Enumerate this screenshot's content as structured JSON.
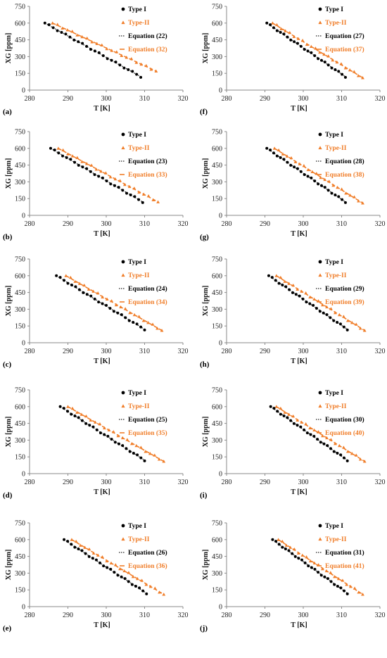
{
  "colors": {
    "type1": "#000000",
    "type2": "#F07E2A",
    "eq1": "#222222",
    "eq2": "#F07E2A"
  },
  "axes": {
    "xlabel": "T [K]",
    "ylabel": "XG [ppm]",
    "xticks": [
      "280",
      "290",
      "300",
      "310",
      "320"
    ],
    "yticks": [
      "0",
      "150",
      "300",
      "450",
      "600",
      "750"
    ],
    "xlim": [
      280,
      320
    ],
    "ylim": [
      0,
      750
    ]
  },
  "chart_data": [
    {
      "type": "scatter",
      "panel": "(a)",
      "xlabel": "T [K]",
      "ylabel": "XG [ppm]",
      "xlim": [
        280,
        320
      ],
      "ylim": [
        0,
        750
      ],
      "grid": false,
      "legend": "top-right",
      "legend_labels": [
        "Type I",
        "Type-II",
        "Equation (22)",
        "Equation (32)"
      ],
      "series": [
        {
          "name": "Type I",
          "x_range": [
            284,
            309
          ],
          "y_range": [
            600,
            120
          ]
        },
        {
          "name": "Type-II",
          "x_range": [
            286,
            313
          ],
          "y_range": [
            600,
            170
          ]
        },
        {
          "name": "Equation (22)",
          "x_range": [
            284,
            309
          ],
          "y_range": [
            600,
            120
          ]
        },
        {
          "name": "Equation (32)",
          "x_range": [
            286,
            313
          ],
          "y_range": [
            600,
            170
          ]
        }
      ]
    },
    {
      "type": "scatter",
      "panel": "(b)",
      "xlabel": "T [K]",
      "ylabel": "XG [ppm]",
      "xlim": [
        280,
        320
      ],
      "ylim": [
        0,
        750
      ],
      "grid": false,
      "legend": "top-right",
      "legend_labels": [
        "Type I",
        "Type-II",
        "Equation (23)",
        "Equation (33)"
      ],
      "series": [
        {
          "name": "Type I",
          "x_range": [
            285.5,
            309.5
          ],
          "y_range": [
            600,
            120
          ]
        },
        {
          "name": "Type-II",
          "x_range": [
            287.5,
            313.5
          ],
          "y_range": [
            600,
            120
          ]
        },
        {
          "name": "Equation (23)",
          "x_range": [
            285.5,
            309.5
          ],
          "y_range": [
            600,
            120
          ]
        },
        {
          "name": "Equation (33)",
          "x_range": [
            287.5,
            313.5
          ],
          "y_range": [
            600,
            120
          ]
        }
      ]
    },
    {
      "type": "scatter",
      "panel": "(c)",
      "xlabel": "T [K]",
      "ylabel": "XG [ppm]",
      "xlim": [
        280,
        320
      ],
      "ylim": [
        0,
        750
      ],
      "grid": false,
      "legend": "top-right",
      "legend_labels": [
        "Type I",
        "Type-II",
        "Equation (24)",
        "Equation (34)"
      ],
      "series": [
        {
          "name": "Type I",
          "x_range": [
            287,
            310
          ],
          "y_range": [
            600,
            120
          ]
        },
        {
          "name": "Type-II",
          "x_range": [
            289.5,
            314.5
          ],
          "y_range": [
            600,
            110
          ]
        },
        {
          "name": "Equation (24)",
          "x_range": [
            287,
            310
          ],
          "y_range": [
            600,
            120
          ]
        },
        {
          "name": "Equation (34)",
          "x_range": [
            289.5,
            314.5
          ],
          "y_range": [
            600,
            110
          ]
        }
      ]
    },
    {
      "type": "scatter",
      "panel": "(d)",
      "xlabel": "T [K]",
      "ylabel": "XG [ppm]",
      "xlim": [
        280,
        320
      ],
      "ylim": [
        0,
        750
      ],
      "grid": false,
      "legend": "top-right",
      "legend_labels": [
        "Type I",
        "Type-II",
        "Equation (25)",
        "Equation (35)"
      ],
      "series": [
        {
          "name": "Type I",
          "x_range": [
            288,
            310
          ],
          "y_range": [
            600,
            120
          ]
        },
        {
          "name": "Type-II",
          "x_range": [
            290,
            315
          ],
          "y_range": [
            600,
            110
          ]
        },
        {
          "name": "Equation (25)",
          "x_range": [
            288,
            310
          ],
          "y_range": [
            600,
            120
          ]
        },
        {
          "name": "Equation (35)",
          "x_range": [
            290,
            315
          ],
          "y_range": [
            600,
            110
          ]
        }
      ]
    },
    {
      "type": "scatter",
      "panel": "(e)",
      "xlabel": "T [K]",
      "ylabel": "XG [ppm]",
      "xlim": [
        280,
        320
      ],
      "ylim": [
        0,
        750
      ],
      "grid": false,
      "legend": "top-right",
      "legend_labels": [
        "Type I",
        "Type-II",
        "Equation (26)",
        "Equation (36)"
      ],
      "series": [
        {
          "name": "Type I",
          "x_range": [
            289,
            310.5
          ],
          "y_range": [
            600,
            120
          ]
        },
        {
          "name": "Type-II",
          "x_range": [
            291,
            315
          ],
          "y_range": [
            600,
            110
          ]
        },
        {
          "name": "Equation (26)",
          "x_range": [
            289,
            310.5
          ],
          "y_range": [
            600,
            120
          ]
        },
        {
          "name": "Equation (36)",
          "x_range": [
            291,
            315
          ],
          "y_range": [
            600,
            110
          ]
        }
      ]
    },
    {
      "type": "scatter",
      "panel": "(f)",
      "xlabel": "T [K]",
      "ylabel": "XG [ppm]",
      "xlim": [
        280,
        320
      ],
      "ylim": [
        0,
        750
      ],
      "grid": false,
      "legend": "top-right",
      "legend_labels": [
        "Type I",
        "Type-II",
        "Equation (27)",
        "Equation (37)"
      ],
      "series": [
        {
          "name": "Type I",
          "x_range": [
            290.5,
            311
          ],
          "y_range": [
            600,
            120
          ]
        },
        {
          "name": "Type-II",
          "x_range": [
            292,
            315.5
          ],
          "y_range": [
            600,
            110
          ]
        },
        {
          "name": "Equation (27)",
          "x_range": [
            290.5,
            311
          ],
          "y_range": [
            600,
            120
          ]
        },
        {
          "name": "Equation (37)",
          "x_range": [
            292,
            315.5
          ],
          "y_range": [
            600,
            110
          ]
        }
      ]
    },
    {
      "type": "scatter",
      "panel": "(g)",
      "xlabel": "T [K]",
      "ylabel": "XG [ppm]",
      "xlim": [
        280,
        320
      ],
      "ylim": [
        0,
        750
      ],
      "grid": false,
      "legend": "top-right",
      "legend_labels": [
        "Type I",
        "Type-II",
        "Equation (28)",
        "Equation (38)"
      ],
      "series": [
        {
          "name": "Type I",
          "x_range": [
            290.5,
            311
          ],
          "y_range": [
            600,
            120
          ]
        },
        {
          "name": "Type-II",
          "x_range": [
            292.5,
            315.5
          ],
          "y_range": [
            600,
            110
          ]
        },
        {
          "name": "Equation (28)",
          "x_range": [
            290.5,
            311
          ],
          "y_range": [
            600,
            120
          ]
        },
        {
          "name": "Equation (38)",
          "x_range": [
            292.5,
            315.5
          ],
          "y_range": [
            600,
            110
          ]
        }
      ]
    },
    {
      "type": "scatter",
      "panel": "(h)",
      "xlabel": "T [K]",
      "ylabel": "XG [ppm]",
      "xlim": [
        280,
        320
      ],
      "ylim": [
        0,
        750
      ],
      "grid": false,
      "legend": "top-right",
      "legend_labels": [
        "Type I",
        "Type-II",
        "Equation (29)",
        "Equation (39)"
      ],
      "series": [
        {
          "name": "Type I",
          "x_range": [
            291,
            311.5
          ],
          "y_range": [
            600,
            120
          ]
        },
        {
          "name": "Type-II",
          "x_range": [
            293,
            316
          ],
          "y_range": [
            600,
            110
          ]
        },
        {
          "name": "Equation (29)",
          "x_range": [
            291,
            311.5
          ],
          "y_range": [
            600,
            120
          ]
        },
        {
          "name": "Equation (39)",
          "x_range": [
            293,
            316
          ],
          "y_range": [
            600,
            110
          ]
        }
      ]
    },
    {
      "type": "scatter",
      "panel": "(i)",
      "xlabel": "T [K]",
      "ylabel": "XG [ppm]",
      "xlim": [
        280,
        320
      ],
      "ylim": [
        0,
        750
      ],
      "grid": false,
      "legend": "top-right",
      "legend_labels": [
        "Type I",
        "Type-II",
        "Equation (30)",
        "Equation (40)"
      ],
      "series": [
        {
          "name": "Type I",
          "x_range": [
            291.5,
            311.5
          ],
          "y_range": [
            600,
            120
          ]
        },
        {
          "name": "Type-II",
          "x_range": [
            293,
            316
          ],
          "y_range": [
            600,
            110
          ]
        },
        {
          "name": "Equation (30)",
          "x_range": [
            291.5,
            311.5
          ],
          "y_range": [
            600,
            120
          ]
        },
        {
          "name": "Equation (40)",
          "x_range": [
            293,
            316
          ],
          "y_range": [
            600,
            110
          ]
        }
      ]
    },
    {
      "type": "scatter",
      "panel": "(j)",
      "xlabel": "T [K]",
      "ylabel": "XG [ppm]",
      "xlim": [
        280,
        320
      ],
      "ylim": [
        0,
        750
      ],
      "grid": false,
      "legend": "top-right",
      "legend_labels": [
        "Type I",
        "Type-II",
        "Equation (31)",
        "Equation (41)"
      ],
      "series": [
        {
          "name": "Type I",
          "x_range": [
            292,
            311.5
          ],
          "y_range": [
            600,
            120
          ]
        },
        {
          "name": "Type-II",
          "x_range": [
            293.5,
            315.5
          ],
          "y_range": [
            600,
            110
          ]
        },
        {
          "name": "Equation (31)",
          "x_range": [
            292,
            311.5
          ],
          "y_range": [
            600,
            120
          ]
        },
        {
          "name": "Equation (41)",
          "x_range": [
            293.5,
            315.5
          ],
          "y_range": [
            600,
            110
          ]
        }
      ]
    }
  ]
}
